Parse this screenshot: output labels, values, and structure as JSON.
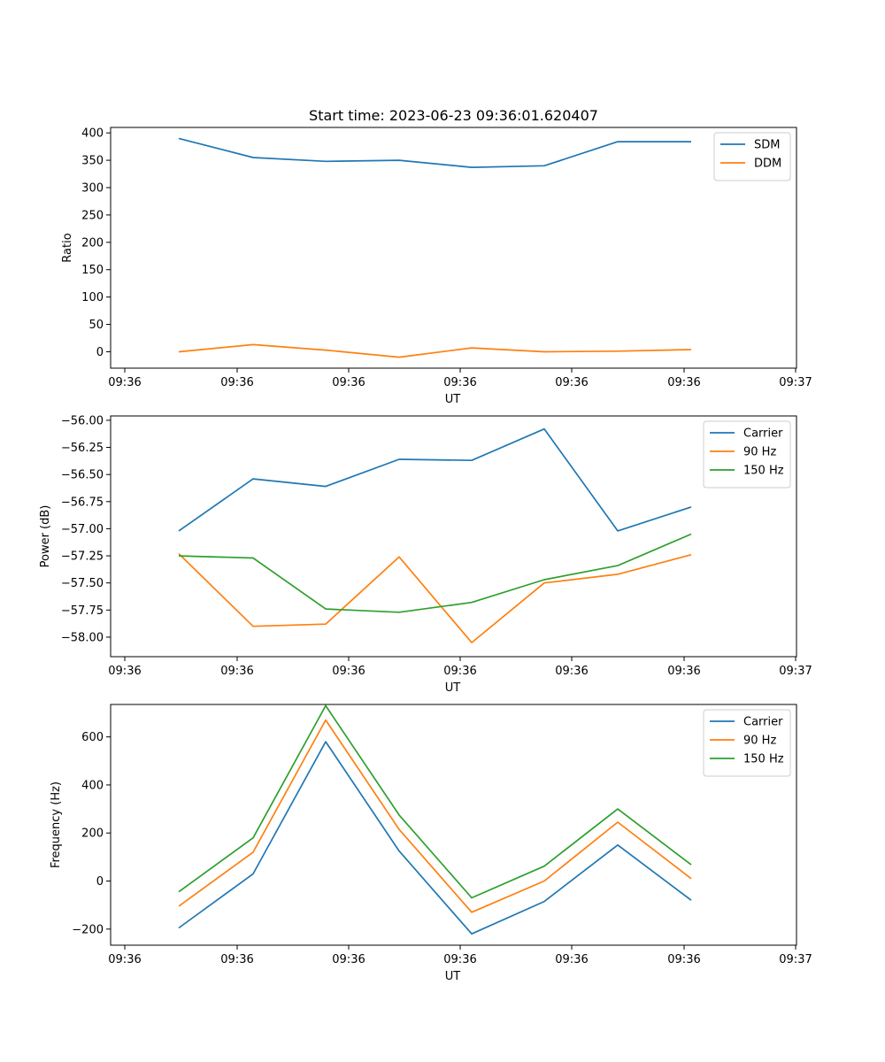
{
  "chart_data": [
    {
      "type": "line",
      "title": "Start time: 2023-06-23 09:36:01.620407",
      "xlabel": "UT",
      "ylabel": "Ratio",
      "x_tick_labels": [
        "09:36",
        "09:36",
        "09:36",
        "09:36",
        "09:36",
        "09:36",
        "09:37"
      ],
      "y_ticks": [
        0,
        50,
        100,
        150,
        200,
        250,
        300,
        350,
        400
      ],
      "y_tick_labels": [
        "0",
        "50",
        "100",
        "150",
        "200",
        "250",
        "300",
        "350",
        "400"
      ],
      "ylim": [
        -30,
        410
      ],
      "legend_position": "top-right",
      "grid": false,
      "series": [
        {
          "name": "SDM",
          "color": "#1f77b4",
          "values": [
            390,
            355,
            348,
            350,
            337,
            340,
            384,
            384
          ]
        },
        {
          "name": "DDM",
          "color": "#ff7f0e",
          "values": [
            0,
            13,
            3,
            -10,
            7,
            0,
            1,
            4
          ]
        }
      ]
    },
    {
      "type": "line",
      "title": "",
      "xlabel": "UT",
      "ylabel": "Power (dB)",
      "x_tick_labels": [
        "09:36",
        "09:36",
        "09:36",
        "09:36",
        "09:36",
        "09:36",
        "09:37"
      ],
      "y_ticks": [
        -58.0,
        -57.75,
        -57.5,
        -57.25,
        -57.0,
        -56.75,
        -56.5,
        -56.25,
        -56.0
      ],
      "y_tick_labels": [
        "−58.00",
        "−57.75",
        "−57.50",
        "−57.25",
        "−57.00",
        "−56.75",
        "−56.50",
        "−56.25",
        "−56.00"
      ],
      "ylim": [
        -58.18,
        -55.96
      ],
      "legend_position": "top-right",
      "grid": false,
      "series": [
        {
          "name": "Carrier",
          "color": "#1f77b4",
          "values": [
            -57.02,
            -56.54,
            -56.61,
            -56.36,
            -56.37,
            -56.08,
            -57.02,
            -56.8
          ]
        },
        {
          "name": "90 Hz",
          "color": "#ff7f0e",
          "values": [
            -57.23,
            -57.9,
            -57.88,
            -57.26,
            -58.05,
            -57.5,
            -57.42,
            -57.24
          ]
        },
        {
          "name": "150 Hz",
          "color": "#2ca02c",
          "values": [
            -57.25,
            -57.27,
            -57.74,
            -57.77,
            -57.68,
            -57.47,
            -57.34,
            -57.05
          ]
        }
      ]
    },
    {
      "type": "line",
      "title": "",
      "xlabel": "UT",
      "ylabel": "Frequency (Hz)",
      "x_tick_labels": [
        "09:36",
        "09:36",
        "09:36",
        "09:36",
        "09:36",
        "09:36",
        "09:37"
      ],
      "y_ticks": [
        -200,
        0,
        200,
        400,
        600
      ],
      "y_tick_labels": [
        "−200",
        "0",
        "200",
        "400",
        "600"
      ],
      "ylim": [
        -267,
        735
      ],
      "legend_position": "top-right",
      "grid": false,
      "series": [
        {
          "name": "Carrier",
          "color": "#1f77b4",
          "values": [
            -195,
            30,
            580,
            125,
            -220,
            -85,
            150,
            -80
          ]
        },
        {
          "name": "90 Hz",
          "color": "#ff7f0e",
          "values": [
            -105,
            120,
            670,
            215,
            -130,
            0,
            245,
            10
          ]
        },
        {
          "name": "150 Hz",
          "color": "#2ca02c",
          "values": [
            -45,
            180,
            730,
            275,
            -70,
            62,
            300,
            68
          ]
        }
      ]
    }
  ]
}
